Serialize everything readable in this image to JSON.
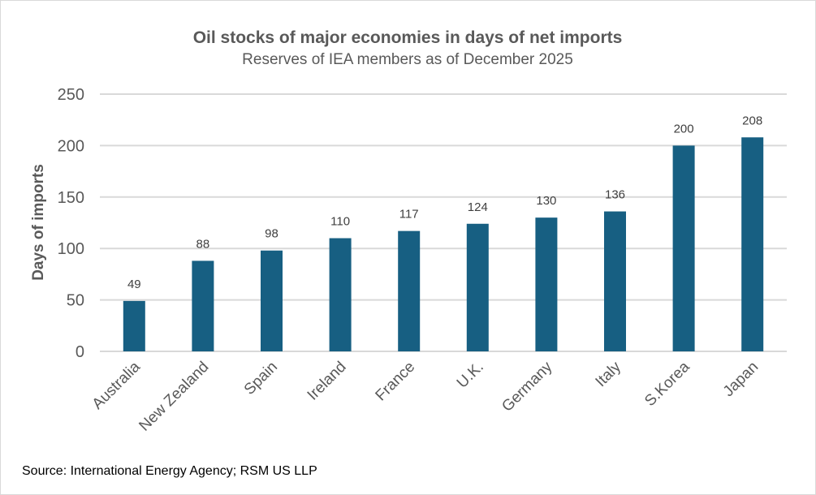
{
  "chart_data": {
    "type": "bar",
    "title": "Oil stocks of major economies in days of net imports",
    "subtitle": "Reserves of IEA members as of December 2025",
    "xlabel": "",
    "ylabel": "Days of imports",
    "categories": [
      "Australia",
      "New Zealand",
      "Spain",
      "Ireland",
      "France",
      "U.K.",
      "Germany",
      "Italy",
      "S.Korea",
      "Japan"
    ],
    "values": [
      49,
      88,
      98,
      110,
      117,
      124,
      130,
      136,
      200,
      208
    ],
    "ylim": [
      0,
      250
    ],
    "yticks": [
      0,
      50,
      100,
      150,
      200,
      250
    ],
    "grid": true,
    "legend": "none",
    "bar_color": "#175f82",
    "source": "Source: International Energy Agency; RSM US LLP"
  }
}
